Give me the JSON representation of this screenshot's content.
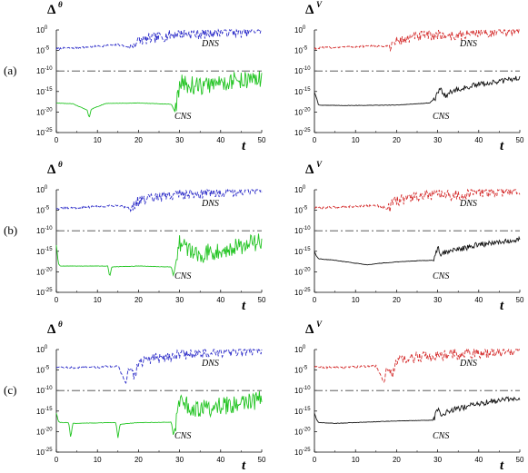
{
  "figure": {
    "rows": [
      {
        "label": "(a)"
      },
      {
        "label": "(b)"
      },
      {
        "label": "(c)"
      }
    ]
  },
  "chart_data": [
    {
      "type": "line",
      "title": "Δ",
      "title_sup": "θ",
      "xlabel": "t",
      "ylabel": "",
      "xlim": [
        0,
        50
      ],
      "ylog": true,
      "ylim_exp": [
        -25,
        0
      ],
      "x_ticks": [
        "0",
        "10",
        "20",
        "30",
        "40",
        "50"
      ],
      "y_ticks": [
        {
          "base": "10",
          "exp": "0"
        },
        {
          "base": "10",
          "exp": "-5"
        },
        {
          "base": "10",
          "exp": "-10"
        },
        {
          "base": "10",
          "exp": "-15"
        },
        {
          "base": "10",
          "exp": "-20"
        },
        {
          "base": "10",
          "exp": "-25"
        }
      ],
      "threshold_exp": -10,
      "series": [
        {
          "name": "DNS",
          "color": "#2b2bc8",
          "style": "dashed",
          "x": [
            0,
            5,
            10,
            15,
            18,
            20,
            25,
            30,
            35,
            40,
            45,
            50
          ],
          "y_exp": [
            -4.6,
            -4.3,
            -4.0,
            -3.6,
            -4.2,
            -2.6,
            -1.8,
            -0.8,
            -1.0,
            -0.3,
            -0.6,
            0.2
          ]
        },
        {
          "name": "CNS",
          "color": "#22c422",
          "style": "solid",
          "x": [
            0,
            4,
            7.5,
            8,
            8.5,
            12,
            20,
            28,
            29,
            30,
            35,
            40,
            45,
            50
          ],
          "y_exp": [
            -17.8,
            -18.0,
            -19.5,
            -21.5,
            -19.3,
            -17.9,
            -17.8,
            -18.1,
            -20.2,
            -13.0,
            -13.8,
            -12.8,
            -12.2,
            -12.0
          ]
        }
      ]
    },
    {
      "type": "line",
      "title": "Δ",
      "title_sup": "V",
      "xlabel": "t",
      "ylabel": "",
      "xlim": [
        0,
        50
      ],
      "ylog": true,
      "ylim_exp": [
        -25,
        0
      ],
      "x_ticks": [
        "0",
        "10",
        "20",
        "30",
        "40",
        "50"
      ],
      "y_ticks": [
        {
          "base": "10",
          "exp": "0"
        },
        {
          "base": "10",
          "exp": "-5"
        },
        {
          "base": "10",
          "exp": "-10"
        },
        {
          "base": "10",
          "exp": "-15"
        },
        {
          "base": "10",
          "exp": "-20"
        },
        {
          "base": "10",
          "exp": "-25"
        }
      ],
      "threshold_exp": -10,
      "series": [
        {
          "name": "DNS",
          "color": "#d42a2a",
          "style": "dashed",
          "x": [
            0,
            5,
            10,
            15,
            18,
            20,
            25,
            30,
            35,
            40,
            45,
            50
          ],
          "y_exp": [
            -4.5,
            -4.2,
            -4.1,
            -3.9,
            -4.0,
            -2.8,
            -1.6,
            -1.2,
            -1.5,
            -0.4,
            -0.8,
            0.1
          ]
        },
        {
          "name": "CNS",
          "color": "#111111",
          "style": "solid",
          "x": [
            0,
            0.5,
            1,
            5,
            10,
            20,
            28,
            29.5,
            30,
            31,
            32,
            33,
            35,
            40,
            45,
            50
          ],
          "y_exp": [
            -15.2,
            -16.5,
            -18.3,
            -18.4,
            -18.4,
            -18.3,
            -17.8,
            -16.6,
            -15.0,
            -14.7,
            -16.0,
            -15.2,
            -14.5,
            -13.3,
            -12.6,
            -11.6
          ]
        }
      ]
    },
    {
      "type": "line",
      "title": "Δ",
      "title_sup": "θ",
      "xlabel": "t",
      "ylabel": "",
      "xlim": [
        0,
        50
      ],
      "ylog": true,
      "ylim_exp": [
        -25,
        0
      ],
      "x_ticks": [
        "0",
        "10",
        "20",
        "30",
        "40",
        "50"
      ],
      "y_ticks": [
        {
          "base": "10",
          "exp": "0"
        },
        {
          "base": "10",
          "exp": "-5"
        },
        {
          "base": "10",
          "exp": "-10"
        },
        {
          "base": "10",
          "exp": "-15"
        },
        {
          "base": "10",
          "exp": "-20"
        },
        {
          "base": "10",
          "exp": "-25"
        }
      ],
      "threshold_exp": -10,
      "series": [
        {
          "name": "DNS",
          "color": "#2b2bc8",
          "style": "dashed",
          "x": [
            0,
            5,
            10,
            15,
            18,
            20,
            25,
            30,
            35,
            40,
            45,
            50
          ],
          "y_exp": [
            -4.6,
            -4.4,
            -4.1,
            -3.8,
            -4.5,
            -2.7,
            -1.9,
            -1.0,
            -0.9,
            -0.5,
            -0.3,
            0.3
          ]
        },
        {
          "name": "CNS",
          "color": "#22c422",
          "style": "solid",
          "x": [
            0,
            0.5,
            1,
            6,
            12.5,
            13,
            13.5,
            20,
            28,
            28.5,
            30,
            35,
            40,
            45,
            50
          ],
          "y_exp": [
            -13.5,
            -18.0,
            -18.6,
            -18.6,
            -18.6,
            -21.2,
            -18.8,
            -18.6,
            -18.8,
            -21.0,
            -13.2,
            -15.8,
            -14.5,
            -13.8,
            -12.4
          ]
        }
      ]
    },
    {
      "type": "line",
      "title": "Δ",
      "title_sup": "V",
      "xlabel": "t",
      "ylabel": "",
      "xlim": [
        0,
        50
      ],
      "ylog": true,
      "ylim_exp": [
        -25,
        0
      ],
      "x_ticks": [
        "0",
        "10",
        "20",
        "30",
        "40",
        "50"
      ],
      "y_ticks": [
        {
          "base": "10",
          "exp": "0"
        },
        {
          "base": "10",
          "exp": "-5"
        },
        {
          "base": "10",
          "exp": "-10"
        },
        {
          "base": "10",
          "exp": "-15"
        },
        {
          "base": "10",
          "exp": "-20"
        },
        {
          "base": "10",
          "exp": "-25"
        }
      ],
      "threshold_exp": -10,
      "series": [
        {
          "name": "DNS",
          "color": "#d42a2a",
          "style": "dashed",
          "x": [
            0,
            5,
            10,
            15,
            18,
            20,
            25,
            30,
            35,
            40,
            45,
            50
          ],
          "y_exp": [
            -4.4,
            -4.3,
            -4.0,
            -3.8,
            -4.6,
            -2.6,
            -1.7,
            -1.3,
            -1.4,
            -0.6,
            -0.5,
            0.0
          ]
        },
        {
          "name": "CNS",
          "color": "#111111",
          "style": "solid",
          "x": [
            0,
            0.5,
            1,
            5,
            10,
            13,
            15,
            20,
            25,
            29,
            30,
            31,
            32,
            35,
            40,
            45,
            50
          ],
          "y_exp": [
            -15.0,
            -16.2,
            -16.8,
            -17.2,
            -17.9,
            -18.3,
            -18.0,
            -17.6,
            -17.3,
            -17.2,
            -14.2,
            -16.0,
            -15.0,
            -14.6,
            -13.4,
            -12.6,
            -12.1
          ]
        }
      ]
    },
    {
      "type": "line",
      "title": "Δ",
      "title_sup": "θ",
      "xlabel": "t",
      "ylabel": "",
      "xlim": [
        0,
        50
      ],
      "ylog": true,
      "ylim_exp": [
        -25,
        0
      ],
      "x_ticks": [
        "0",
        "10",
        "20",
        "30",
        "40",
        "50"
      ],
      "y_ticks": [
        {
          "base": "10",
          "exp": "0"
        },
        {
          "base": "10",
          "exp": "-5"
        },
        {
          "base": "10",
          "exp": "-10"
        },
        {
          "base": "10",
          "exp": "-15"
        },
        {
          "base": "10",
          "exp": "-20"
        },
        {
          "base": "10",
          "exp": "-25"
        }
      ],
      "threshold_exp": -10,
      "series": [
        {
          "name": "DNS",
          "color": "#2b2bc8",
          "style": "dashed",
          "x": [
            0,
            5,
            10,
            15,
            17,
            17.5,
            19,
            20,
            25,
            30,
            35,
            40,
            45,
            50
          ],
          "y_exp": [
            -4.2,
            -4.5,
            -4.3,
            -4.0,
            -8.5,
            -4.6,
            -6.6,
            -3.0,
            -2.0,
            -1.2,
            -1.0,
            -0.7,
            -0.5,
            0.1
          ]
        },
        {
          "name": "CNS",
          "color": "#22c422",
          "style": "solid",
          "x": [
            0,
            0.5,
            1,
            3,
            3.5,
            4,
            9,
            14.5,
            15,
            15.5,
            20,
            28,
            28.5,
            30,
            35,
            40,
            45,
            50
          ],
          "y_exp": [
            -15.5,
            -17.5,
            -17.8,
            -17.8,
            -21.5,
            -18.0,
            -17.9,
            -17.8,
            -21.5,
            -18.2,
            -17.8,
            -17.7,
            -21.0,
            -13.2,
            -14.5,
            -13.8,
            -13.2,
            -12.2
          ]
        }
      ]
    },
    {
      "type": "line",
      "title": "Δ",
      "title_sup": "V",
      "xlabel": "t",
      "ylabel": "",
      "xlim": [
        0,
        50
      ],
      "ylog": true,
      "ylim_exp": [
        -25,
        0
      ],
      "x_ticks": [
        "0",
        "10",
        "20",
        "30",
        "40",
        "50"
      ],
      "y_ticks": [
        {
          "base": "10",
          "exp": "0"
        },
        {
          "base": "10",
          "exp": "-5"
        },
        {
          "base": "10",
          "exp": "-10"
        },
        {
          "base": "10",
          "exp": "-15"
        },
        {
          "base": "10",
          "exp": "-20"
        },
        {
          "base": "10",
          "exp": "-25"
        }
      ],
      "threshold_exp": -10,
      "series": [
        {
          "name": "DNS",
          "color": "#d42a2a",
          "style": "dashed",
          "x": [
            0,
            5,
            10,
            15,
            17,
            17.5,
            19,
            20,
            25,
            30,
            35,
            40,
            45,
            50
          ],
          "y_exp": [
            -4.3,
            -4.4,
            -4.2,
            -4.0,
            -8.2,
            -4.5,
            -6.0,
            -2.9,
            -1.9,
            -1.4,
            -1.2,
            -0.8,
            -0.6,
            -0.1
          ]
        },
        {
          "name": "CNS",
          "color": "#111111",
          "style": "solid",
          "x": [
            0,
            0.5,
            1,
            5,
            10,
            15,
            20,
            25,
            29,
            30,
            31,
            32,
            35,
            40,
            45,
            50
          ],
          "y_exp": [
            -15.5,
            -17.0,
            -17.8,
            -18.0,
            -17.8,
            -17.6,
            -17.4,
            -17.3,
            -17.2,
            -14.3,
            -16.2,
            -15.2,
            -14.4,
            -13.1,
            -12.4,
            -11.9
          ]
        }
      ]
    }
  ]
}
